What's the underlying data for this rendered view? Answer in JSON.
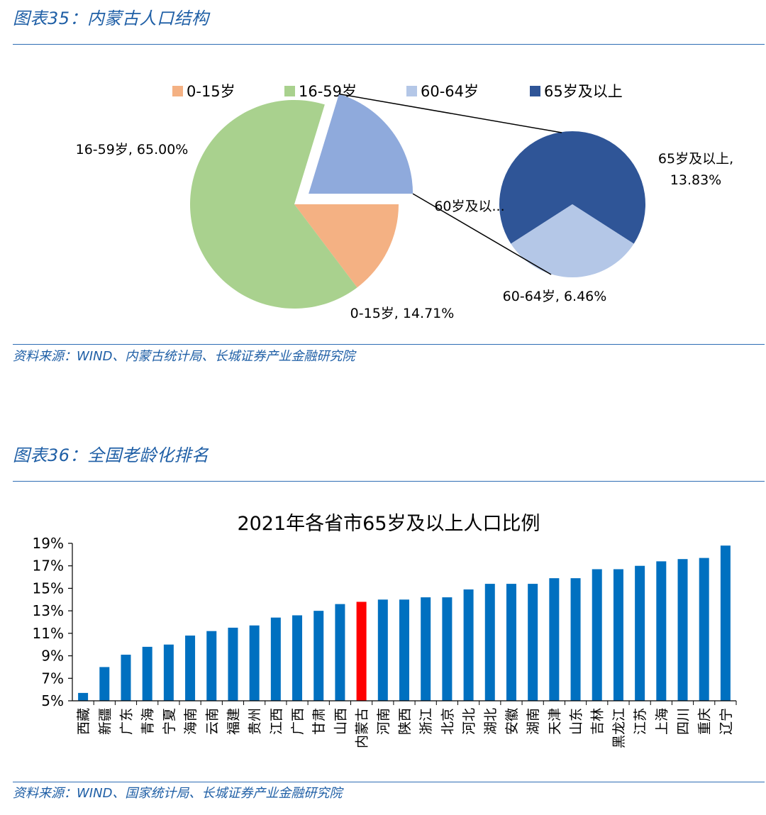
{
  "figures": [
    {
      "caption": "图表35：内蒙古人口结构",
      "source": "资料来源：WIND、内蒙古统计局、长城证券产业金融研究院"
    },
    {
      "caption": "图表36：全国老龄化排名",
      "source": "资料来源：WIND、国家统计局、长城证券产业金融研究院"
    }
  ],
  "chart_data": [
    {
      "type": "pie",
      "subtype": "bar-of-pie",
      "title": "",
      "legend": {
        "position": "top",
        "entries": [
          "0-15岁",
          "16-59岁",
          "60-64岁",
          "65岁及以上"
        ]
      },
      "main_slices": [
        {
          "name": "0-15岁",
          "value": 14.71,
          "label": "0-15岁, 14.71%",
          "color": "#f4b183"
        },
        {
          "name": "16-59岁",
          "value": 65.0,
          "label": "16-59岁, 65.00%",
          "color": "#a9d18e"
        },
        {
          "name": "60岁及以上",
          "value": 20.29,
          "label": "60岁及以...",
          "color": "#8faadc"
        }
      ],
      "sub_slices": [
        {
          "name": "65岁及以上",
          "value": 13.83,
          "label": "65岁及以上,\n13.83%",
          "color": "#2f5597"
        },
        {
          "name": "60-64岁",
          "value": 6.46,
          "label": "60-64岁, 6.46%",
          "color": "#b4c7e7"
        }
      ]
    },
    {
      "type": "bar",
      "title": "2021年各省市65岁及以上人口比例",
      "xlabel": "",
      "ylabel": "",
      "ylim": [
        5,
        19
      ],
      "yticks": [
        "5%",
        "7%",
        "9%",
        "11%",
        "13%",
        "15%",
        "17%",
        "19%"
      ],
      "categories": [
        "西藏",
        "新疆",
        "广东",
        "青海",
        "宁夏",
        "海南",
        "云南",
        "福建",
        "贵州",
        "江西",
        "广西",
        "甘肃",
        "山西",
        "内蒙古",
        "河南",
        "陕西",
        "浙江",
        "北京",
        "河北",
        "湖北",
        "安徽",
        "湖南",
        "天津",
        "山东",
        "吉林",
        "黑龙江",
        "江苏",
        "上海",
        "四川",
        "重庆",
        "辽宁"
      ],
      "values": [
        5.7,
        8.0,
        9.1,
        9.8,
        10.0,
        10.8,
        11.2,
        11.5,
        11.7,
        12.4,
        12.6,
        13.0,
        13.6,
        13.8,
        14.0,
        14.0,
        14.2,
        14.2,
        14.9,
        15.4,
        15.4,
        15.4,
        15.9,
        15.9,
        16.7,
        16.7,
        17.0,
        17.4,
        17.6,
        17.7,
        18.8
      ],
      "highlight": "内蒙古",
      "bar_color": "#0070c0",
      "highlight_color": "#ff0000"
    }
  ]
}
